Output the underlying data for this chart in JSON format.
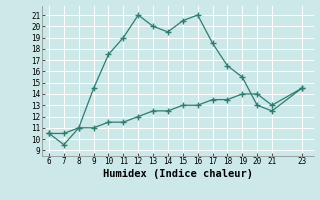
{
  "xlabel": "Humidex (Indice chaleur)",
  "bg_color": "#cce8e8",
  "grid_color": "#ffffff",
  "line_color": "#2e7d6e",
  "xlim": [
    5.5,
    23.8
  ],
  "ylim": [
    8.5,
    21.8
  ],
  "xticks": [
    6,
    7,
    8,
    9,
    10,
    11,
    12,
    13,
    14,
    15,
    16,
    17,
    18,
    19,
    20,
    21,
    23
  ],
  "yticks": [
    9,
    10,
    11,
    12,
    13,
    14,
    15,
    16,
    17,
    18,
    19,
    20,
    21
  ],
  "line1_x": [
    6,
    7,
    8,
    9,
    10,
    11,
    12,
    13,
    14,
    15,
    16,
    17,
    18,
    19,
    20,
    21,
    23
  ],
  "line1_y": [
    10.5,
    9.5,
    11.0,
    14.5,
    17.5,
    19.0,
    21.0,
    20.0,
    19.5,
    20.5,
    21.0,
    18.5,
    16.5,
    15.5,
    13.0,
    12.5,
    14.5
  ],
  "line2_x": [
    6,
    7,
    8,
    9,
    10,
    11,
    12,
    13,
    14,
    15,
    16,
    17,
    18,
    19,
    20,
    21,
    23
  ],
  "line2_y": [
    10.5,
    10.5,
    11.0,
    11.0,
    11.5,
    11.5,
    12.0,
    12.5,
    12.5,
    13.0,
    13.0,
    13.5,
    13.5,
    14.0,
    14.0,
    13.0,
    14.5
  ],
  "tick_fontsize": 5.5,
  "xlabel_fontsize": 7.5,
  "marker": "+",
  "markersize": 4.0,
  "linewidth": 0.9
}
